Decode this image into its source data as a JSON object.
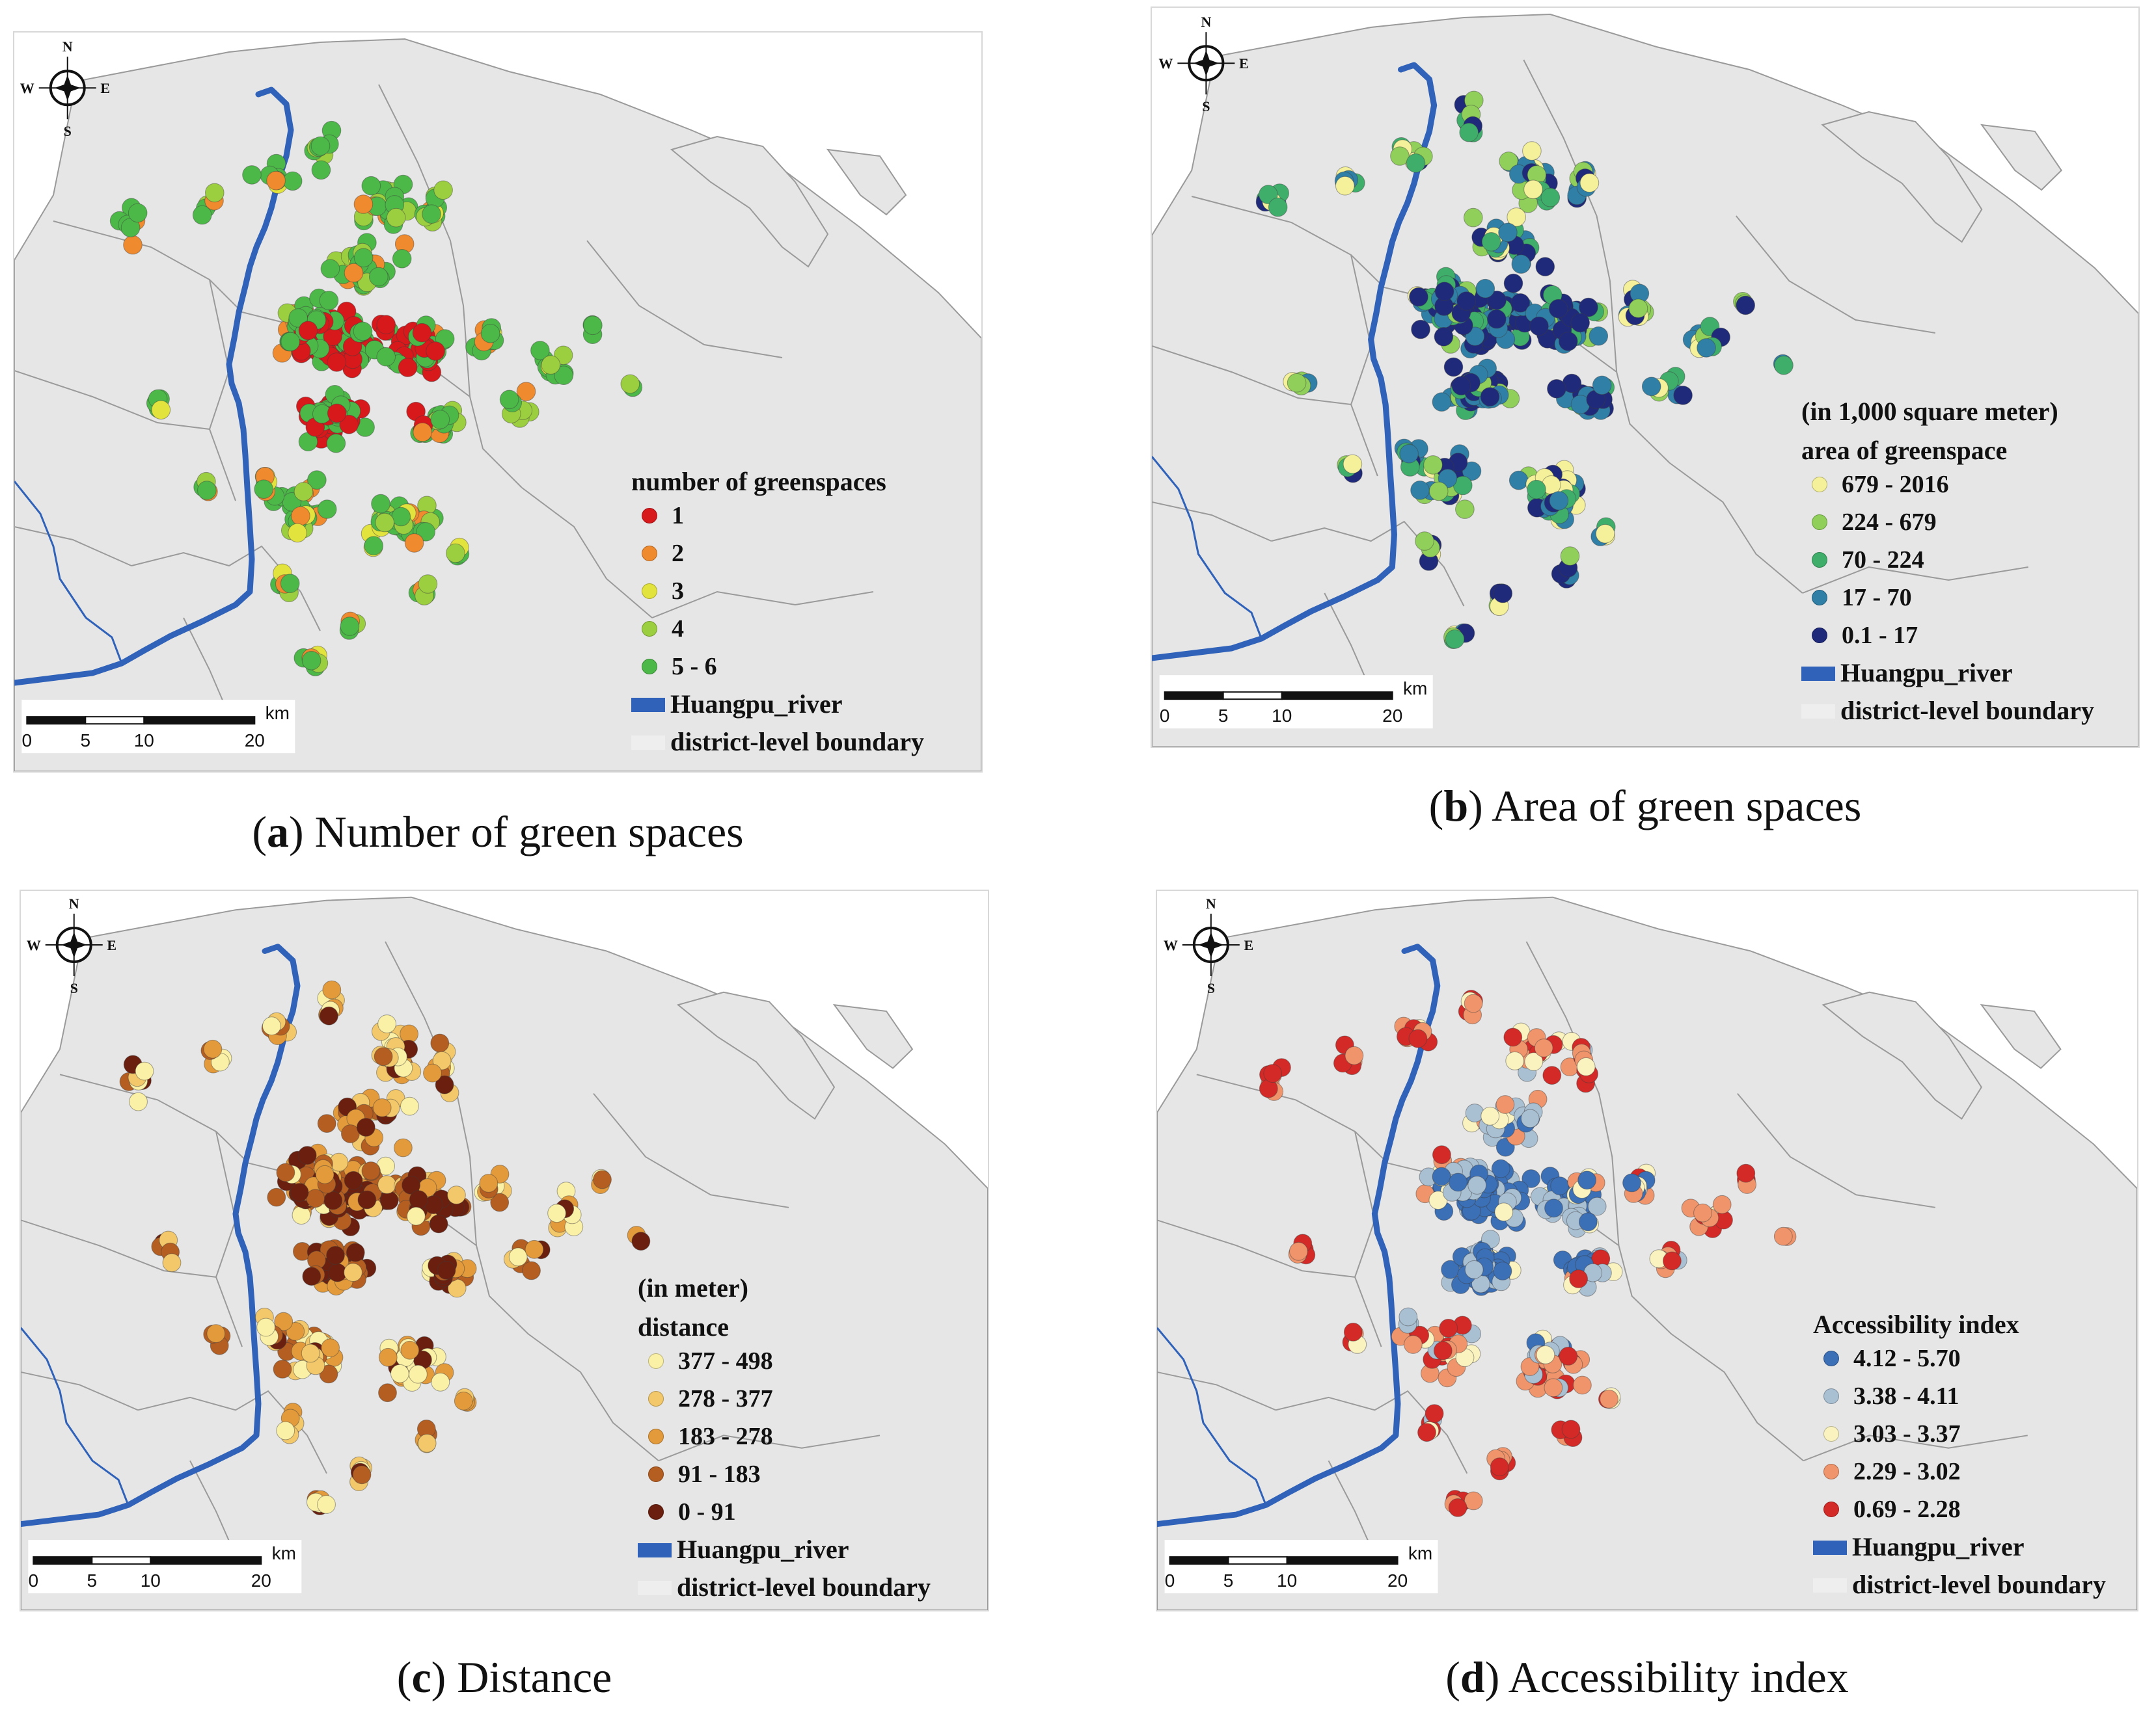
{
  "panels": [
    {
      "id": "a",
      "caption_letter": "a",
      "caption_text": "Number of green spaces",
      "legend": {
        "unit": "",
        "title": "number of greenspaces",
        "classes": [
          {
            "label": "1",
            "color": "#d7191c"
          },
          {
            "label": "2",
            "color": "#f08a2e"
          },
          {
            "label": "3",
            "color": "#e3e33e"
          },
          {
            "label": "4",
            "color": "#9ccf3f"
          },
          {
            "label": "5 - 6",
            "color": "#4cb848"
          }
        ],
        "river_label": "Huangpu_river",
        "boundary_label": "district-level boundary"
      },
      "scale_bar": {
        "ticks": [
          "0",
          "5",
          "10",
          "20"
        ],
        "unit": "km"
      }
    },
    {
      "id": "b",
      "caption_letter": "b",
      "caption_text": "Area of green spaces",
      "legend": {
        "unit": "(in 1,000 square meter)",
        "title": "area of greenspace",
        "classes": [
          {
            "label": "679 - 2016",
            "color": "#f4f19a"
          },
          {
            "label": "224 - 679",
            "color": "#8fcf5a"
          },
          {
            "label": "70 - 224",
            "color": "#3fae6b"
          },
          {
            "label": "17 - 70",
            "color": "#2f7fa6"
          },
          {
            "label": "0.1 - 17",
            "color": "#1f2a7a"
          }
        ],
        "river_label": "Huangpu_river",
        "boundary_label": "district-level boundary"
      },
      "scale_bar": {
        "ticks": [
          "0",
          "5",
          "10",
          "20"
        ],
        "unit": "km"
      }
    },
    {
      "id": "c",
      "caption_letter": "c",
      "caption_text": "Distance",
      "legend": {
        "unit": "(in meter)",
        "title": "distance",
        "classes": [
          {
            "label": "377 - 498",
            "color": "#fbf1a6"
          },
          {
            "label": "278 - 377",
            "color": "#f3c86a"
          },
          {
            "label": "183 - 278",
            "color": "#e39a3a"
          },
          {
            "label": "91 - 183",
            "color": "#b45e21"
          },
          {
            "label": "0 - 91",
            "color": "#6b1f0e"
          }
        ],
        "river_label": "Huangpu_river",
        "boundary_label": "district-level boundary"
      },
      "scale_bar": {
        "ticks": [
          "0",
          "5",
          "10",
          "20"
        ],
        "unit": "km"
      }
    },
    {
      "id": "d",
      "caption_letter": "d",
      "caption_text": "Accessibility index",
      "legend": {
        "unit": "",
        "title": "Accessibility index",
        "classes": [
          {
            "label": "4.12 - 5.70",
            "color": "#3b6fb6"
          },
          {
            "label": "3.38 - 4.11",
            "color": "#a9bfd2"
          },
          {
            "label": "3.03 - 3.37",
            "color": "#faf3c0"
          },
          {
            "label": "2.29 - 3.02",
            "color": "#ef946b"
          },
          {
            "label": "0.69 - 2.28",
            "color": "#d42a27"
          }
        ],
        "river_label": "Huangpu_river",
        "boundary_label": "district-level boundary"
      },
      "scale_bar": {
        "ticks": [
          "0",
          "5",
          "10",
          "20"
        ],
        "unit": "km"
      }
    }
  ],
  "north_arrow": {
    "n": "N",
    "s": "S",
    "e": "E",
    "w": "W"
  },
  "colors": {
    "land": "#e6e6e6",
    "boundary": "#9a9a9a",
    "river": "#2f62b8",
    "background": "#ffffff"
  }
}
